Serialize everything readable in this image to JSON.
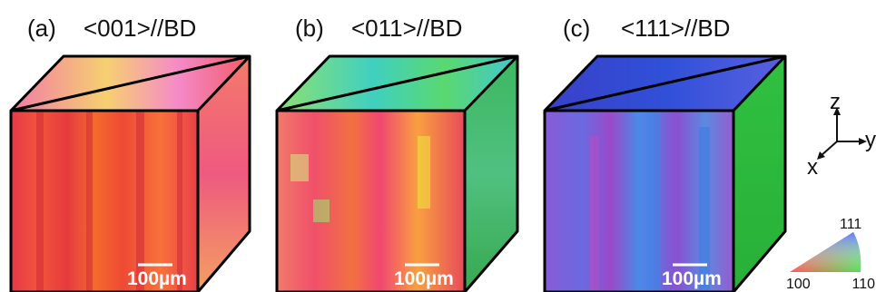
{
  "panels": [
    {
      "label": "(a)",
      "title": "<001>//BD",
      "scale_bar": "100µm"
    },
    {
      "label": "(b)",
      "title": "<011>//BD",
      "scale_bar": "100µm"
    },
    {
      "label": "(c)",
      "title": "<111>//BD",
      "scale_bar": "100µm"
    }
  ],
  "axes": {
    "z": "z",
    "y": "y",
    "x": "x"
  },
  "legend": {
    "top": "111",
    "left": "100",
    "right": "110"
  }
}
